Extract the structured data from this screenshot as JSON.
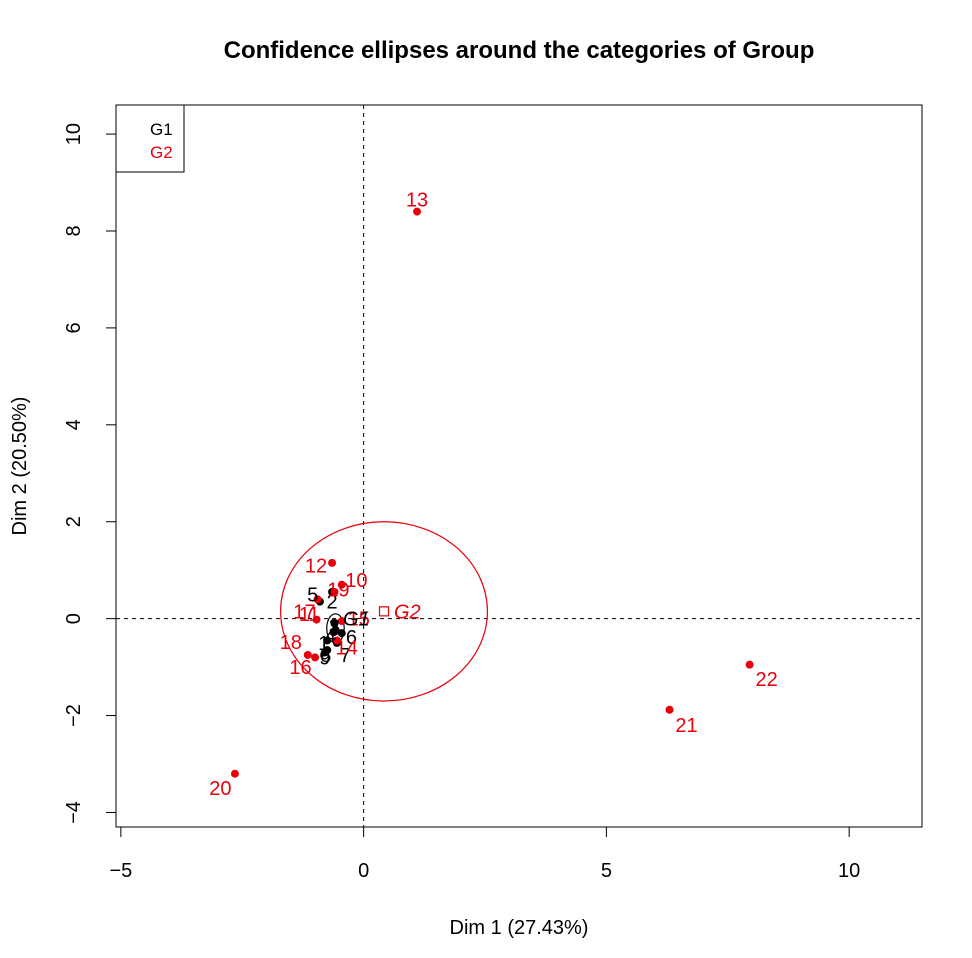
{
  "chart_data": {
    "type": "scatter",
    "title": "Confidence ellipses around the categories of Group",
    "xlabel": "Dim 1 (27.43%)",
    "ylabel": "Dim 2 (20.50%)",
    "xlim": [
      -5.1,
      11.5
    ],
    "ylim": [
      -4.3,
      10.6
    ],
    "xticks": [
      -5,
      0,
      5,
      10
    ],
    "yticks": [
      -4,
      -2,
      0,
      2,
      4,
      6,
      8,
      10
    ],
    "x_tick_labels": [
      "−5",
      "0",
      "5",
      "10"
    ],
    "y_tick_labels": [
      "−4",
      "−2",
      "0",
      "2",
      "4",
      "6",
      "8",
      "10"
    ],
    "reference_lines": {
      "x": 0,
      "y": 0
    },
    "legend": {
      "placement": "top-left",
      "entries": [
        {
          "label": "G1",
          "color": "#000000"
        },
        {
          "label": "G2",
          "color": "#e8000b"
        }
      ]
    },
    "series": [
      {
        "name": "G1",
        "color": "#000000",
        "points": [
          {
            "label": "5",
            "x": -0.9,
            "y": 0.35,
            "lx": -1.05,
            "ly": 0.5
          },
          {
            "label": "2",
            "x": -0.65,
            "y": 0.55,
            "lx": -0.65,
            "ly": 0.35
          },
          {
            "label": "3",
            "x": -0.6,
            "y": -0.1,
            "lx": -0.6,
            "ly": -0.15
          },
          {
            "label": "4",
            "x": -0.62,
            "y": -0.28,
            "lx": -0.68,
            "ly": -0.35
          },
          {
            "label": "1",
            "x": -0.75,
            "y": -0.45,
            "lx": -0.82,
            "ly": -0.5
          },
          {
            "label": "6",
            "x": -0.45,
            "y": -0.3,
            "lx": -0.25,
            "ly": -0.38
          },
          {
            "label": "7",
            "x": -0.55,
            "y": -0.5,
            "lx": -0.38,
            "ly": -0.75
          },
          {
            "label": "8",
            "x": -0.75,
            "y": -0.65,
            "lx": -0.78,
            "ly": -0.75
          },
          {
            "label": "9",
            "x": -0.8,
            "y": -0.7,
            "lx": -0.8,
            "ly": -0.8
          }
        ]
      },
      {
        "name": "G2",
        "color": "#e8000b",
        "points": [
          {
            "label": "13",
            "x": 1.1,
            "y": 8.4,
            "lx": 1.1,
            "ly": 8.65
          },
          {
            "label": "12",
            "x": -0.65,
            "y": 1.15,
            "lx": -0.98,
            "ly": 1.1
          },
          {
            "label": "10",
            "x": -0.45,
            "y": 0.7,
            "lx": -0.15,
            "ly": 0.8
          },
          {
            "label": "19",
            "x": -0.6,
            "y": 0.55,
            "lx": -0.52,
            "ly": 0.6
          },
          {
            "label": "17",
            "x": -0.95,
            "y": 0.4,
            "lx": -1.22,
            "ly": 0.15
          },
          {
            "label": "11",
            "x": -0.97,
            "y": -0.02,
            "lx": -1.12,
            "ly": 0.1
          },
          {
            "label": "15",
            "x": -0.45,
            "y": -0.05,
            "lx": -0.1,
            "ly": 0.0
          },
          {
            "label": "14",
            "x": -0.55,
            "y": -0.45,
            "lx": -0.35,
            "ly": -0.6
          },
          {
            "label": "18",
            "x": -1.15,
            "y": -0.75,
            "lx": -1.5,
            "ly": -0.48
          },
          {
            "label": "16",
            "x": -1.0,
            "y": -0.8,
            "lx": -1.3,
            "ly": -1.0
          },
          {
            "label": "20",
            "x": -2.65,
            "y": -3.2,
            "lx": -2.95,
            "ly": -3.5
          },
          {
            "label": "21",
            "x": 6.3,
            "y": -1.88,
            "lx": 6.65,
            "ly": -2.2
          },
          {
            "label": "22",
            "x": 7.95,
            "y": -0.95,
            "lx": 8.3,
            "ly": -1.25
          }
        ]
      }
    ],
    "centroids": [
      {
        "label": "G1",
        "x": -0.58,
        "y": -0.25,
        "lx": -0.15,
        "ly": 0.0,
        "color": "#000000",
        "marker": "circle"
      },
      {
        "label": "G2",
        "x": 0.42,
        "y": 0.15,
        "lx": 0.9,
        "ly": 0.15,
        "color": "#e8000b",
        "marker": "square"
      }
    ],
    "ellipses": [
      {
        "group": "G1",
        "cx": -0.58,
        "cy": -0.2,
        "rx": 0.18,
        "ry": 0.3,
        "color": "#000000"
      },
      {
        "group": "G2",
        "cx": 0.42,
        "cy": 0.15,
        "rx": 2.13,
        "ry": 1.85,
        "color": "#e8000b"
      }
    ]
  }
}
